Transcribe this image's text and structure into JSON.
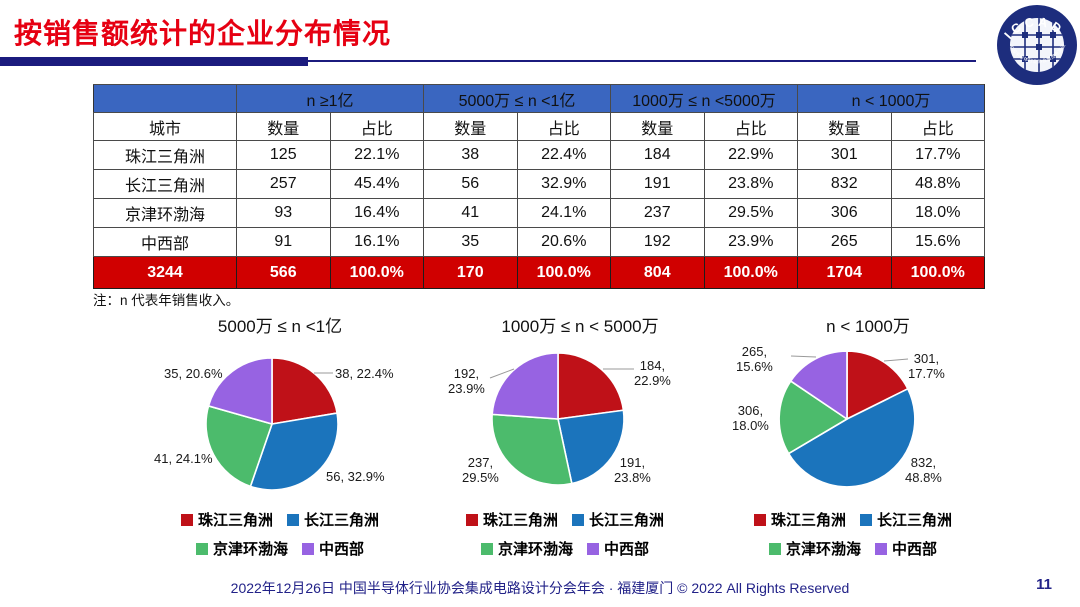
{
  "page": {
    "title": "按销售额统计的企业分布情况",
    "note": "注：n 代表年销售收入。",
    "footer": "2022年12月26日 中国半导体行业协会集成电路设计分会年会 · 福建厦门 © 2022 All Rights Reserved",
    "page_number": "11"
  },
  "logo": {
    "text": "ICCAD",
    "ring_text": "中国半导体行业协会集成电路设计分会"
  },
  "colors": {
    "title_red": "#e60012",
    "header_blue": "#3a66c0",
    "total_row_red": "#d00000",
    "underline_navy": "#1b1b7e",
    "footer_navy": "#222288",
    "series": [
      "#bf1118",
      "#1b74bc",
      "#4cbb6c",
      "#9763e2"
    ]
  },
  "table": {
    "city_header": "城市",
    "groups": [
      "n ≥1亿",
      "5000万 ≤ n <1亿",
      "1000万 ≤ n <5000万",
      "n < 1000万"
    ],
    "sub_count": "数量",
    "sub_share": "占比",
    "rows": [
      {
        "city": "珠江三角洲",
        "cells": [
          "125",
          "22.1%",
          "38",
          "22.4%",
          "184",
          "22.9%",
          "301",
          "17.7%"
        ]
      },
      {
        "city": "长江三角洲",
        "cells": [
          "257",
          "45.4%",
          "56",
          "32.9%",
          "191",
          "23.8%",
          "832",
          "48.8%"
        ]
      },
      {
        "city": "京津环渤海",
        "cells": [
          "93",
          "16.4%",
          "41",
          "24.1%",
          "237",
          "29.5%",
          "306",
          "18.0%"
        ]
      },
      {
        "city": "中西部",
        "cells": [
          "91",
          "16.1%",
          "35",
          "20.6%",
          "192",
          "23.9%",
          "265",
          "15.6%"
        ]
      }
    ],
    "total": {
      "city": "3244",
      "cells": [
        "566",
        "100.0%",
        "170",
        "100.0%",
        "804",
        "100.0%",
        "1704",
        "100.0%"
      ]
    }
  },
  "legend": {
    "items": [
      "珠江三角洲",
      "长江三角洲",
      "京津环渤海",
      "中西部"
    ]
  },
  "chart_data": [
    {
      "type": "pie",
      "title": "5000万 ≤ n <1亿",
      "categories": [
        "珠江三角洲",
        "长江三角洲",
        "京津环渤海",
        "中西部"
      ],
      "values": [
        38,
        56,
        41,
        35
      ],
      "percents": [
        22.4,
        32.9,
        24.1,
        20.6
      ],
      "labels": [
        "38, 22.4%",
        "56, 32.9%",
        "41, 24.1%",
        "35, 20.6%"
      ],
      "colors": [
        "#bf1118",
        "#1b74bc",
        "#4cbb6c",
        "#9763e2"
      ],
      "start_angle_deg": 0,
      "direction": "clockwise",
      "legend_position": "bottom"
    },
    {
      "type": "pie",
      "title": "1000万 ≤ n < 5000万",
      "categories": [
        "珠江三角洲",
        "长江三角洲",
        "京津环渤海",
        "中西部"
      ],
      "values": [
        184,
        191,
        237,
        192
      ],
      "percents": [
        22.9,
        23.8,
        29.5,
        23.9
      ],
      "labels": [
        "184,\n22.9%",
        "191,\n23.8%",
        "237,\n29.5%",
        "192,\n23.9%"
      ],
      "colors": [
        "#bf1118",
        "#1b74bc",
        "#4cbb6c",
        "#9763e2"
      ],
      "start_angle_deg": 0,
      "direction": "clockwise",
      "legend_position": "bottom"
    },
    {
      "type": "pie",
      "title": "n < 1000万",
      "categories": [
        "珠江三角洲",
        "长江三角洲",
        "京津环渤海",
        "中西部"
      ],
      "values": [
        301,
        832,
        306,
        265
      ],
      "percents": [
        17.7,
        48.8,
        18.0,
        15.6
      ],
      "labels": [
        "301,\n17.7%",
        "832,\n48.8%",
        "306,\n18.0%",
        "265,\n15.6%"
      ],
      "colors": [
        "#bf1118",
        "#1b74bc",
        "#4cbb6c",
        "#9763e2"
      ],
      "start_angle_deg": 0,
      "direction": "clockwise",
      "legend_position": "bottom"
    }
  ]
}
